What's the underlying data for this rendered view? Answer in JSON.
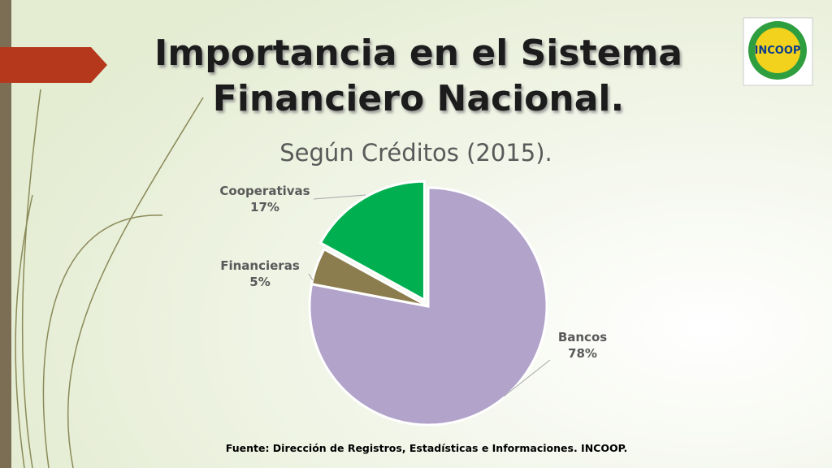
{
  "logo": {
    "text": "INCOOP"
  },
  "chart_data": {
    "type": "pie",
    "title": "Importancia en el Sistema Financiero Nacional.",
    "subtitle": "Según Créditos (2015).",
    "source": "Fuente: Dirección de Registros, Estadísticas e Informaciones. INCOOP.",
    "categories": [
      "Bancos",
      "Financieras",
      "Cooperativas"
    ],
    "values": [
      78,
      5,
      17
    ],
    "value_labels": [
      "78%",
      "5%",
      "17%"
    ],
    "colors": [
      "#b1a3c9",
      "#8c7d4e",
      "#00b050"
    ],
    "exploded": [
      false,
      false,
      true
    ]
  }
}
